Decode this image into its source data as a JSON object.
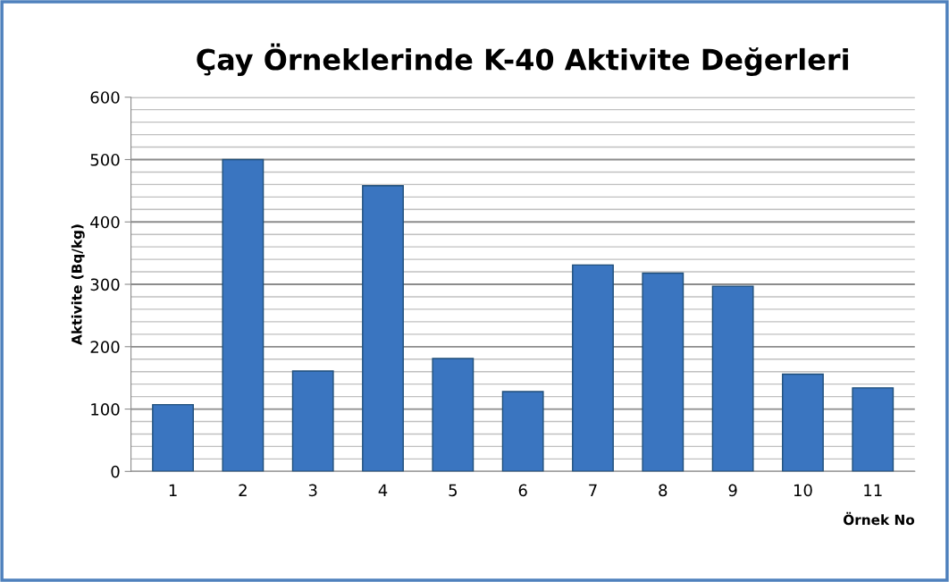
{
  "chart_data": {
    "type": "bar",
    "title": "Çay Örneklerinde K-40 Aktivite Değerleri",
    "xlabel": "Örnek No",
    "ylabel": "Aktivite (Bq/kg)",
    "categories": [
      "1",
      "2",
      "3",
      "4",
      "5",
      "6",
      "7",
      "8",
      "9",
      "10",
      "11"
    ],
    "values": [
      107,
      500,
      161,
      458,
      181,
      128,
      331,
      318,
      297,
      156,
      134
    ],
    "color": "#3a75c0",
    "ylim": [
      0,
      600
    ],
    "yticks": [
      0,
      100,
      200,
      300,
      400,
      500,
      600
    ],
    "grid": "y",
    "legend": false
  }
}
